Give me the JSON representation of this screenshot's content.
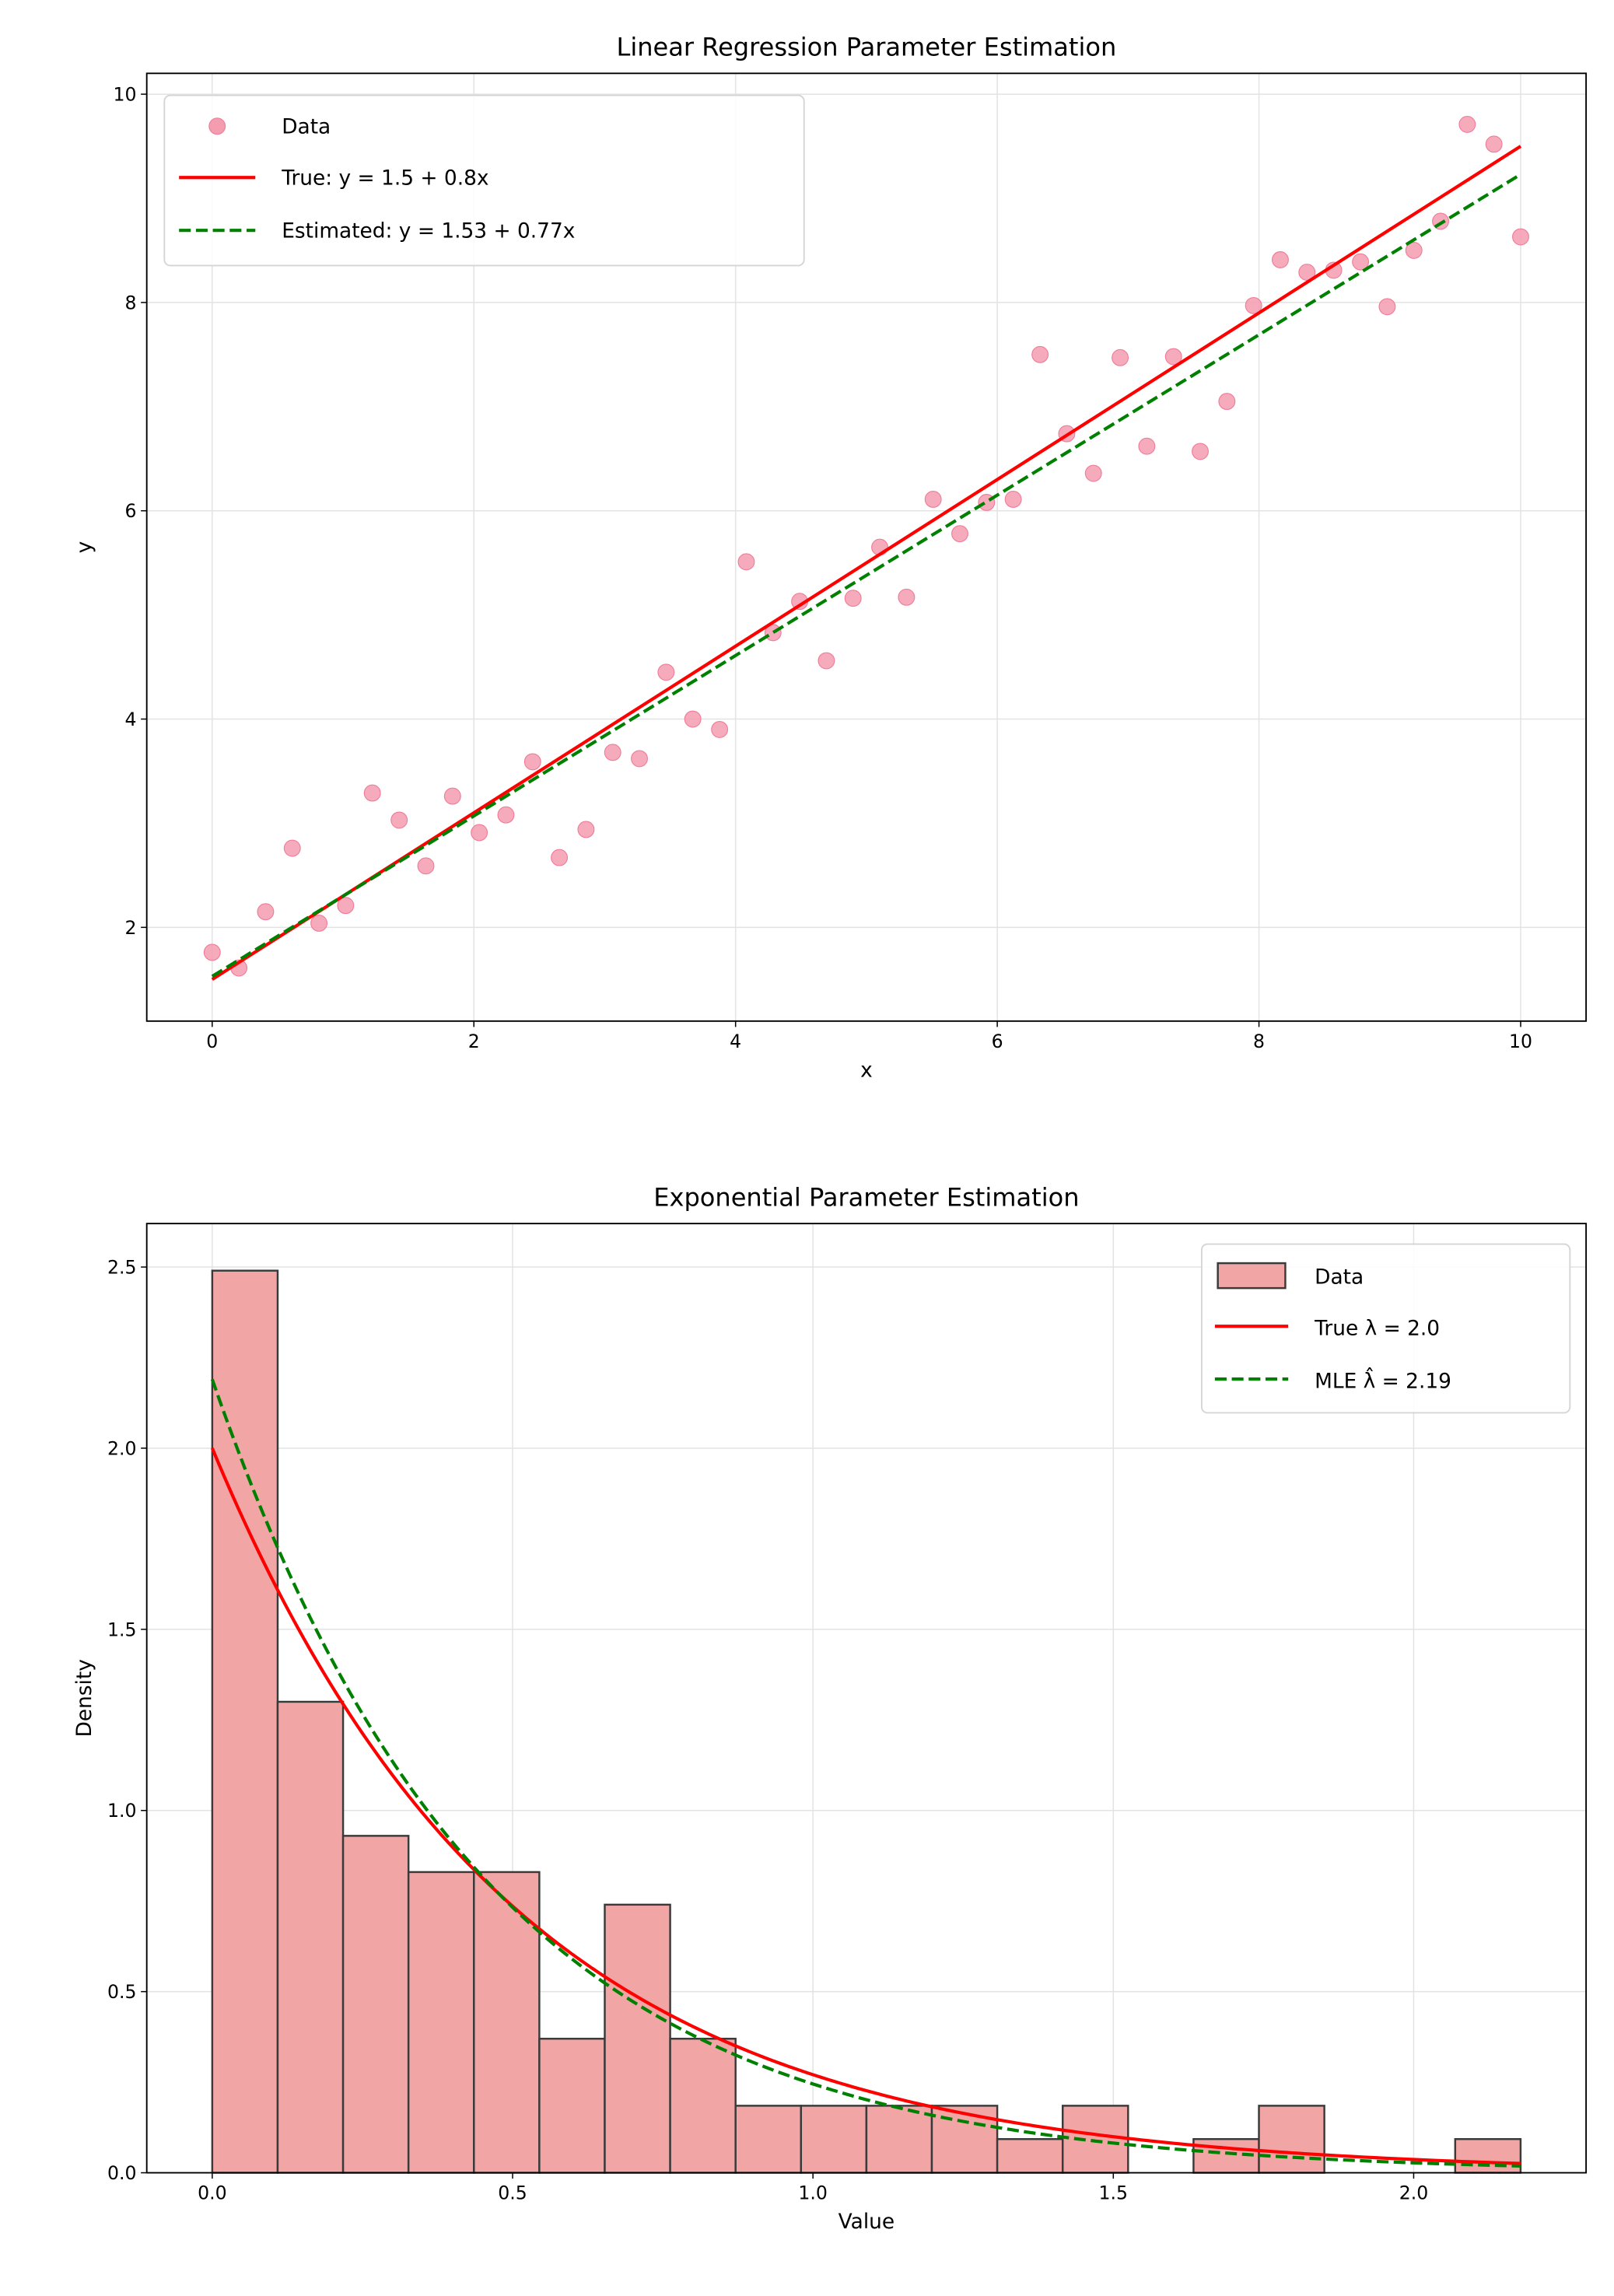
{
  "chart_data": [
    {
      "type": "scatter",
      "title": "Linear Regression Parameter Estimation",
      "xlabel": "x",
      "ylabel": "y",
      "xlim": [
        -0.5,
        10.5
      ],
      "ylim": [
        1.1,
        10.2
      ],
      "xticks": [
        "0",
        "2",
        "4",
        "6",
        "8",
        "10"
      ],
      "yticks": [
        "2",
        "4",
        "6",
        "8",
        "10"
      ],
      "grid": true,
      "legend_position": "top-left",
      "points": {
        "name": "Data",
        "color": "#f49cb0",
        "x": [
          0.0,
          0.204,
          0.408,
          0.612,
          0.816,
          1.02,
          1.224,
          1.429,
          1.633,
          1.837,
          2.041,
          2.245,
          2.449,
          2.653,
          2.857,
          3.061,
          3.265,
          3.469,
          3.673,
          3.878,
          4.082,
          4.286,
          4.49,
          4.694,
          4.898,
          5.102,
          5.306,
          5.51,
          5.714,
          5.918,
          6.122,
          6.327,
          6.531,
          6.735,
          6.939,
          7.143,
          7.347,
          7.551,
          7.755,
          7.959,
          8.163,
          8.367,
          8.571,
          8.776,
          8.98,
          9.184,
          9.388,
          9.592,
          9.796,
          10.0
        ],
        "y": [
          1.76,
          1.61,
          2.15,
          2.76,
          2.04,
          2.21,
          3.29,
          3.03,
          2.59,
          3.26,
          2.91,
          3.08,
          3.59,
          2.67,
          2.94,
          3.68,
          3.62,
          4.45,
          4.0,
          3.9,
          5.51,
          4.83,
          5.13,
          4.56,
          5.16,
          5.65,
          5.17,
          6.11,
          5.78,
          6.08,
          6.11,
          7.5,
          6.74,
          6.36,
          7.47,
          6.62,
          7.48,
          6.57,
          7.05,
          7.97,
          8.41,
          8.29,
          8.31,
          8.39,
          7.96,
          8.5,
          8.78,
          9.71,
          9.52,
          8.63
        ]
      },
      "lines": [
        {
          "name": "True: y = 1.5 + 0.8x",
          "intercept": 1.5,
          "slope": 0.8,
          "color": "#ff0000",
          "style": "solid"
        },
        {
          "name": "Estimated: y = 1.53 + 0.77x",
          "intercept": 1.53,
          "slope": 0.77,
          "color": "#008000",
          "style": "dashed"
        }
      ]
    },
    {
      "type": "bar",
      "title": "Exponential Parameter Estimation",
      "xlabel": "Value",
      "ylabel": "Density",
      "xlim": [
        -0.109,
        2.287
      ],
      "ylim": [
        0,
        2.62
      ],
      "xticks": [
        "0.0",
        "0.5",
        "1.0",
        "1.5",
        "2.0"
      ],
      "yticks": [
        "0.0",
        "0.5",
        "1.0",
        "1.5",
        "2.0",
        "2.5"
      ],
      "grid": true,
      "legend_position": "top-right",
      "histogram": {
        "name": "Data",
        "color": "#f2a5a5",
        "edgecolor": "#3a3a3a",
        "bin_start": 0.0,
        "bin_width": 0.1089,
        "densities": [
          2.49,
          1.3,
          0.93,
          0.83,
          0.83,
          0.37,
          0.74,
          0.37,
          0.185,
          0.185,
          0.185,
          0.185,
          0.093,
          0.185,
          0.0,
          0.093,
          0.185,
          0.0,
          0.0,
          0.093
        ]
      },
      "curves": [
        {
          "name": "True λ = 2.0",
          "rate": 2.0,
          "color": "#ff0000",
          "style": "solid"
        },
        {
          "name": "MLE λ̂ = 2.19",
          "rate": 2.19,
          "color": "#008000",
          "style": "dashed"
        }
      ]
    }
  ]
}
